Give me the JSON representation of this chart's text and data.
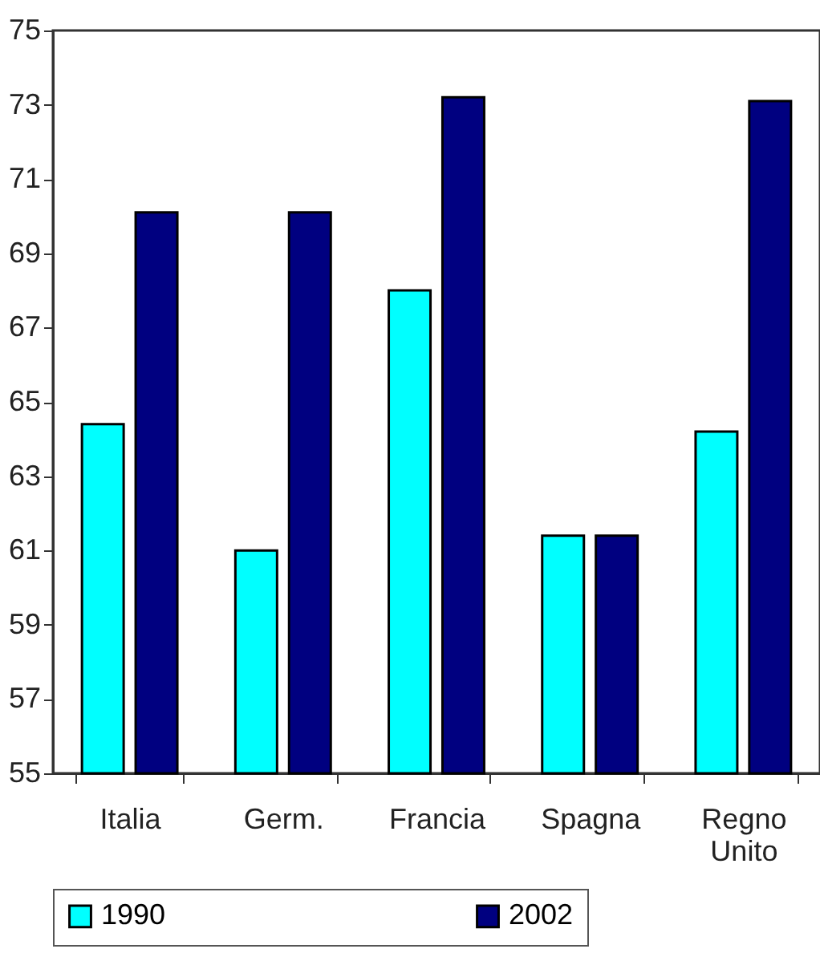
{
  "chart_data": {
    "type": "bar",
    "categories": [
      "Italia",
      "Germ.",
      "Francia",
      "Spagna",
      "Regno Unito"
    ],
    "series": [
      {
        "name": "1990",
        "color": "#00ffff",
        "values": [
          64.4,
          61.0,
          68.0,
          61.4,
          64.2
        ]
      },
      {
        "name": "2002",
        "color": "#000080",
        "values": [
          70.1,
          70.1,
          73.2,
          61.4,
          73.1
        ]
      }
    ],
    "ylim": [
      55,
      75
    ],
    "yticks": [
      55,
      57,
      59,
      61,
      63,
      65,
      67,
      69,
      71,
      73,
      75
    ],
    "grid": false,
    "legend": "bottom"
  }
}
